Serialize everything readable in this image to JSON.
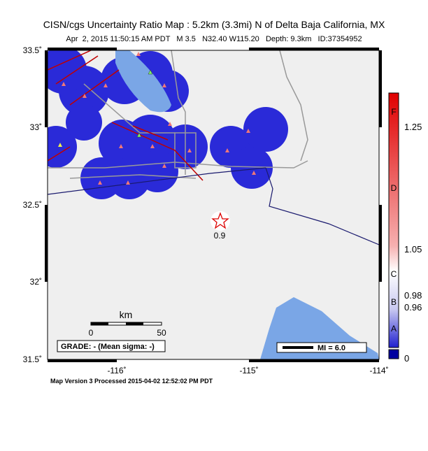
{
  "map": {
    "title": "CISN/cgs Uncertainty Ratio Map : 5.2km (3.3mi) N of Delta Baja California, MX",
    "subtitle": "Apr  2, 2015 11:50:15 AM PDT   M 3.5   N32.40 W115.20   Depth: 9.3km   ID:37354952",
    "lat_labels": [
      "33.5˚",
      "33˚",
      "32.5˚",
      "32˚",
      "31.5˚"
    ],
    "lon_labels": [
      "-116˚",
      "-115˚",
      "-114˚"
    ],
    "scale_bar": {
      "unit": "km",
      "start": "0",
      "end": "50"
    },
    "grade": "GRADE: - (Mean sigma: -)",
    "legend": "MI = 6.0",
    "epicenter_label": "0.9",
    "colorbar": {
      "values": [
        "1.25",
        "1.05",
        "0.98",
        "0.96",
        "0"
      ],
      "grades": [
        "F",
        "D",
        "C",
        "B",
        "A"
      ]
    },
    "footer": "Map Version 3 Processed 2015-04-02 12:52:02 PM PDT"
  }
}
